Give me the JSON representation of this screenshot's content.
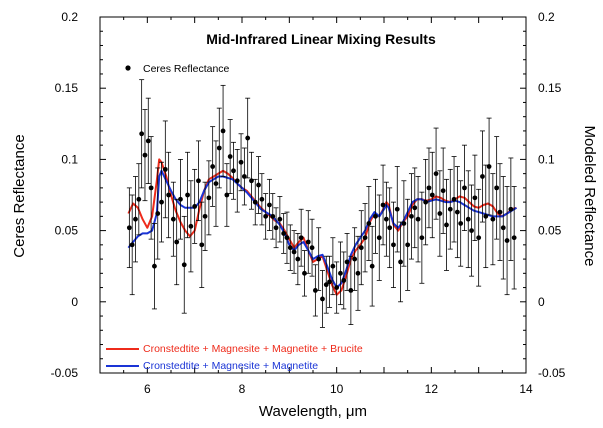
{
  "chart_data": {
    "type": "scatter",
    "title": "Mid-Infrared Linear Mixing Results",
    "xlabel": "Wavelength, μm",
    "ylabel_left": "Ceres Reflectance",
    "ylabel_right": "Modeled Reflectance",
    "xlim": [
      5,
      14
    ],
    "ylim": [
      -0.05,
      0.2
    ],
    "xticks": [
      "6",
      "8",
      "10",
      "12",
      "14"
    ],
    "yticks": [
      "-0.05",
      "0",
      "0.05",
      "0.1",
      "0.15",
      "0.2"
    ],
    "grid": false,
    "legend_position": "top-left",
    "observed": {
      "name": "Ceres Reflectance",
      "color": "#000000",
      "x": [
        5.62,
        5.68,
        5.75,
        5.82,
        5.88,
        5.95,
        6.02,
        6.08,
        6.15,
        6.22,
        6.3,
        6.38,
        6.45,
        6.55,
        6.62,
        6.7,
        6.78,
        6.85,
        6.92,
        7.0,
        7.08,
        7.15,
        7.22,
        7.3,
        7.38,
        7.45,
        7.52,
        7.6,
        7.68,
        7.75,
        7.82,
        7.9,
        7.98,
        8.05,
        8.12,
        8.2,
        8.28,
        8.35,
        8.42,
        8.5,
        8.58,
        8.65,
        8.72,
        8.8,
        8.88,
        8.95,
        9.02,
        9.1,
        9.18,
        9.25,
        9.32,
        9.4,
        9.48,
        9.55,
        9.62,
        9.7,
        9.78,
        9.85,
        9.92,
        10.0,
        10.08,
        10.15,
        10.22,
        10.3,
        10.38,
        10.45,
        10.52,
        10.6,
        10.68,
        10.75,
        10.82,
        10.9,
        10.98,
        11.05,
        11.12,
        11.2,
        11.28,
        11.35,
        11.42,
        11.5,
        11.58,
        11.65,
        11.72,
        11.8,
        11.88,
        11.95,
        12.02,
        12.1,
        12.18,
        12.25,
        12.32,
        12.4,
        12.48,
        12.55,
        12.62,
        12.7,
        12.78,
        12.85,
        12.92,
        13.0,
        13.08,
        13.15,
        13.22,
        13.3,
        13.38,
        13.45,
        13.52,
        13.6,
        13.68,
        13.75
      ],
      "y": [
        0.052,
        0.04,
        0.058,
        0.072,
        0.118,
        0.103,
        0.113,
        0.08,
        0.025,
        0.062,
        0.07,
        0.093,
        0.075,
        0.058,
        0.042,
        0.072,
        0.026,
        0.075,
        0.053,
        0.067,
        0.085,
        0.04,
        0.06,
        0.073,
        0.095,
        0.083,
        0.108,
        0.12,
        0.075,
        0.102,
        0.092,
        0.085,
        0.098,
        0.088,
        0.115,
        0.085,
        0.07,
        0.082,
        0.072,
        0.06,
        0.068,
        0.06,
        0.052,
        0.058,
        0.048,
        0.045,
        0.038,
        0.035,
        0.03,
        0.045,
        0.02,
        0.042,
        0.038,
        0.008,
        0.03,
        0.002,
        0.012,
        0.014,
        0.025,
        0.01,
        0.02,
        0.015,
        0.028,
        0.008,
        0.03,
        0.02,
        0.038,
        0.045,
        0.055,
        0.025,
        0.06,
        0.045,
        0.068,
        0.058,
        0.052,
        0.04,
        0.065,
        0.028,
        0.055,
        0.04,
        0.06,
        0.066,
        0.058,
        0.045,
        0.07,
        0.08,
        0.075,
        0.09,
        0.062,
        0.078,
        0.054,
        0.065,
        0.072,
        0.063,
        0.055,
        0.08,
        0.058,
        0.05,
        0.073,
        0.045,
        0.088,
        0.06,
        0.095,
        0.058,
        0.08,
        0.063,
        0.052,
        0.043,
        0.065,
        0.045
      ],
      "err": [
        0.028,
        0.035,
        0.03,
        0.025,
        0.038,
        0.032,
        0.03,
        0.036,
        0.03,
        0.032,
        0.028,
        0.034,
        0.03,
        0.026,
        0.03,
        0.028,
        0.034,
        0.03,
        0.032,
        0.026,
        0.028,
        0.03,
        0.024,
        0.026,
        0.028,
        0.03,
        0.028,
        0.032,
        0.022,
        0.026,
        0.02,
        0.022,
        0.02,
        0.02,
        0.028,
        0.02,
        0.016,
        0.02,
        0.018,
        0.016,
        0.018,
        0.016,
        0.014,
        0.016,
        0.014,
        0.018,
        0.016,
        0.015,
        0.018,
        0.02,
        0.016,
        0.022,
        0.02,
        0.018,
        0.022,
        0.02,
        0.02,
        0.018,
        0.02,
        0.018,
        0.022,
        0.02,
        0.02,
        0.024,
        0.022,
        0.026,
        0.026,
        0.024,
        0.026,
        0.028,
        0.026,
        0.03,
        0.028,
        0.026,
        0.028,
        0.03,
        0.03,
        0.028,
        0.03,
        0.032,
        0.03,
        0.028,
        0.03,
        0.032,
        0.03,
        0.028,
        0.03,
        0.032,
        0.03,
        0.03,
        0.032,
        0.028,
        0.03,
        0.032,
        0.03,
        0.03,
        0.034,
        0.032,
        0.03,
        0.034,
        0.032,
        0.036,
        0.034,
        0.032,
        0.036,
        0.034,
        0.036,
        0.038,
        0.036,
        0.036
      ]
    },
    "models": [
      {
        "name": "Cronstedtite + Magnesite + Magnetite + Brucite",
        "color": "#ee2b1b",
        "x": [
          5.6,
          5.7,
          5.8,
          5.9,
          6.0,
          6.1,
          6.2,
          6.25,
          6.3,
          6.4,
          6.5,
          6.6,
          6.7,
          6.8,
          6.9,
          7.0,
          7.1,
          7.2,
          7.3,
          7.4,
          7.5,
          7.6,
          7.7,
          7.8,
          7.9,
          8.0,
          8.1,
          8.2,
          8.3,
          8.4,
          8.5,
          8.6,
          8.7,
          8.8,
          8.9,
          9.0,
          9.1,
          9.2,
          9.3,
          9.4,
          9.5,
          9.6,
          9.7,
          9.8,
          9.9,
          10.0,
          10.1,
          10.2,
          10.3,
          10.4,
          10.5,
          10.6,
          10.7,
          10.8,
          10.9,
          11.0,
          11.05,
          11.1,
          11.2,
          11.3,
          11.4,
          11.5,
          11.6,
          11.7,
          11.8,
          11.9,
          12.0,
          12.1,
          12.2,
          12.3,
          12.4,
          12.5,
          12.6,
          12.7,
          12.8,
          12.9,
          13.0,
          13.1,
          13.2,
          13.3,
          13.4,
          13.5,
          13.6,
          13.7,
          13.8
        ],
        "y": [
          0.062,
          0.069,
          0.066,
          0.058,
          0.052,
          0.06,
          0.085,
          0.1,
          0.098,
          0.088,
          0.075,
          0.064,
          0.056,
          0.05,
          0.046,
          0.05,
          0.065,
          0.078,
          0.086,
          0.088,
          0.09,
          0.092,
          0.09,
          0.087,
          0.083,
          0.08,
          0.078,
          0.074,
          0.07,
          0.066,
          0.063,
          0.06,
          0.057,
          0.055,
          0.05,
          0.044,
          0.038,
          0.042,
          0.045,
          0.036,
          0.028,
          0.03,
          0.032,
          0.022,
          0.012,
          0.005,
          0.008,
          0.018,
          0.03,
          0.036,
          0.04,
          0.045,
          0.056,
          0.062,
          0.06,
          0.066,
          0.07,
          0.068,
          0.054,
          0.05,
          0.056,
          0.06,
          0.068,
          0.072,
          0.072,
          0.071,
          0.072,
          0.074,
          0.073,
          0.071,
          0.07,
          0.072,
          0.074,
          0.073,
          0.07,
          0.067,
          0.066,
          0.068,
          0.069,
          0.067,
          0.062,
          0.06,
          0.062,
          0.065,
          0.066
        ]
      },
      {
        "name": "Cronstedtite + Magnesite + Magnetite",
        "color": "#1a34d6",
        "x": [
          5.6,
          5.7,
          5.8,
          5.9,
          6.0,
          6.1,
          6.2,
          6.25,
          6.3,
          6.4,
          6.5,
          6.6,
          6.7,
          6.8,
          6.9,
          7.0,
          7.1,
          7.2,
          7.3,
          7.4,
          7.5,
          7.6,
          7.7,
          7.8,
          7.9,
          8.0,
          8.1,
          8.2,
          8.3,
          8.4,
          8.5,
          8.6,
          8.7,
          8.8,
          8.9,
          9.0,
          9.1,
          9.2,
          9.3,
          9.4,
          9.5,
          9.6,
          9.7,
          9.8,
          9.9,
          10.0,
          10.1,
          10.2,
          10.3,
          10.4,
          10.5,
          10.6,
          10.7,
          10.8,
          10.9,
          11.0,
          11.05,
          11.1,
          11.2,
          11.3,
          11.4,
          11.5,
          11.6,
          11.7,
          11.8,
          11.9,
          12.0,
          12.1,
          12.2,
          12.3,
          12.4,
          12.5,
          12.6,
          12.7,
          12.8,
          12.9,
          13.0,
          13.1,
          13.2,
          13.3,
          13.4,
          13.5,
          13.6,
          13.7,
          13.8
        ],
        "y": [
          0.038,
          0.042,
          0.046,
          0.048,
          0.048,
          0.05,
          0.062,
          0.088,
          0.092,
          0.085,
          0.078,
          0.072,
          0.068,
          0.066,
          0.066,
          0.066,
          0.07,
          0.078,
          0.084,
          0.086,
          0.088,
          0.088,
          0.087,
          0.086,
          0.083,
          0.08,
          0.077,
          0.073,
          0.069,
          0.065,
          0.063,
          0.061,
          0.058,
          0.054,
          0.048,
          0.04,
          0.036,
          0.04,
          0.042,
          0.036,
          0.03,
          0.032,
          0.033,
          0.025,
          0.016,
          0.01,
          0.013,
          0.022,
          0.033,
          0.04,
          0.045,
          0.05,
          0.058,
          0.063,
          0.06,
          0.065,
          0.068,
          0.066,
          0.055,
          0.052,
          0.056,
          0.063,
          0.07,
          0.072,
          0.072,
          0.07,
          0.071,
          0.072,
          0.071,
          0.07,
          0.07,
          0.071,
          0.07,
          0.068,
          0.066,
          0.064,
          0.063,
          0.062,
          0.061,
          0.06,
          0.06,
          0.06,
          0.062,
          0.064,
          0.066
        ]
      }
    ]
  }
}
